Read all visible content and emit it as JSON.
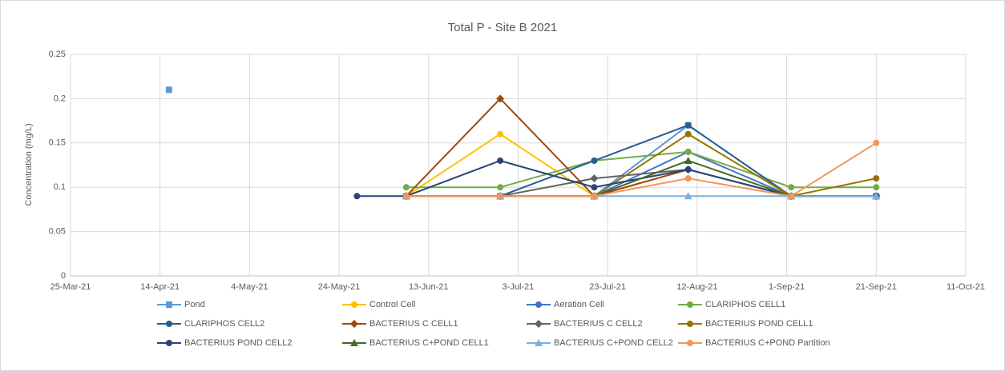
{
  "chart_data": {
    "type": "line",
    "title": "Total P - Site B 2021",
    "ylabel": "Concentration (mg/L)",
    "x": [
      "2021-04-16",
      "2021-05-28",
      "2021-06-08",
      "2021-06-29",
      "2021-07-20",
      "2021-08-10",
      "2021-09-02",
      "2021-09-21"
    ],
    "xlim": [
      "2021-03-25",
      "2021-10-11"
    ],
    "xticks": [
      {
        "value": "2021-03-25",
        "label": "25-Mar-21"
      },
      {
        "value": "2021-04-14",
        "label": "14-Apr-21"
      },
      {
        "value": "2021-05-04",
        "label": "4-May-21"
      },
      {
        "value": "2021-05-24",
        "label": "24-May-21"
      },
      {
        "value": "2021-06-13",
        "label": "13-Jun-21"
      },
      {
        "value": "2021-07-03",
        "label": "3-Jul-21"
      },
      {
        "value": "2021-07-23",
        "label": "23-Jul-21"
      },
      {
        "value": "2021-08-12",
        "label": "12-Aug-21"
      },
      {
        "value": "2021-09-01",
        "label": "1-Sep-21"
      },
      {
        "value": "2021-09-21",
        "label": "21-Sep-21"
      },
      {
        "value": "2021-10-11",
        "label": "11-Oct-21"
      }
    ],
    "ylim": [
      0,
      0.25
    ],
    "yticks": [
      0,
      0.05,
      0.1,
      0.15,
      0.2,
      0.25
    ],
    "grid": true,
    "legend": "bottom",
    "series": [
      {
        "name": "Pond",
        "color": "#5b9bd5",
        "marker": "square",
        "values": [
          0.21,
          null,
          0.09,
          0.09,
          0.09,
          0.17,
          0.09,
          0.09
        ]
      },
      {
        "name": "Control Cell",
        "color": "#ffc000",
        "marker": "circle",
        "values": [
          null,
          null,
          0.09,
          0.16,
          0.09,
          0.12,
          0.09,
          0.09
        ]
      },
      {
        "name": "Aeration Cell",
        "color": "#4472c4",
        "marker": "circle",
        "values": [
          null,
          null,
          0.09,
          0.09,
          0.09,
          0.14,
          0.09,
          0.09
        ]
      },
      {
        "name": "CLARIPHOS CELL1",
        "color": "#70ad47",
        "marker": "circle",
        "values": [
          null,
          null,
          0.1,
          0.1,
          0.13,
          0.14,
          0.1,
          0.1
        ]
      },
      {
        "name": "CLARIPHOS CELL2",
        "color": "#255e91",
        "marker": "circle",
        "values": [
          null,
          null,
          0.09,
          0.09,
          0.13,
          0.17,
          0.09,
          0.09
        ]
      },
      {
        "name": "BACTERIUS C CELL1",
        "color": "#9e480e",
        "marker": "diamond",
        "values": [
          null,
          null,
          0.09,
          0.2,
          0.09,
          0.12,
          0.09,
          0.09
        ]
      },
      {
        "name": "BACTERIUS C CELL2",
        "color": "#636363",
        "marker": "diamond",
        "values": [
          null,
          null,
          0.09,
          0.09,
          0.11,
          0.12,
          0.09,
          0.09
        ]
      },
      {
        "name": "BACTERIUS POND CELL1",
        "color": "#997300",
        "marker": "circle",
        "values": [
          null,
          null,
          0.09,
          0.09,
          0.09,
          0.16,
          0.09,
          0.11
        ]
      },
      {
        "name": "BACTERIUS POND CELL2",
        "color": "#264478",
        "marker": "circle",
        "values": [
          null,
          0.09,
          0.09,
          0.13,
          0.1,
          0.12,
          0.09,
          0.09
        ]
      },
      {
        "name": "BACTERIUS C+POND CELL1",
        "color": "#43682b",
        "marker": "triangle",
        "values": [
          null,
          null,
          0.09,
          0.09,
          0.09,
          0.13,
          0.09,
          0.09
        ]
      },
      {
        "name": "BACTERIUS C+POND CELL2",
        "color": "#7cafdd",
        "marker": "triangle",
        "values": [
          null,
          null,
          0.09,
          0.09,
          0.09,
          0.09,
          0.09,
          0.09
        ]
      },
      {
        "name": "BACTERIUS C+POND Partition",
        "color": "#f1975a",
        "marker": "circle",
        "values": [
          null,
          null,
          0.09,
          0.09,
          0.09,
          0.11,
          0.09,
          0.15
        ]
      }
    ]
  }
}
